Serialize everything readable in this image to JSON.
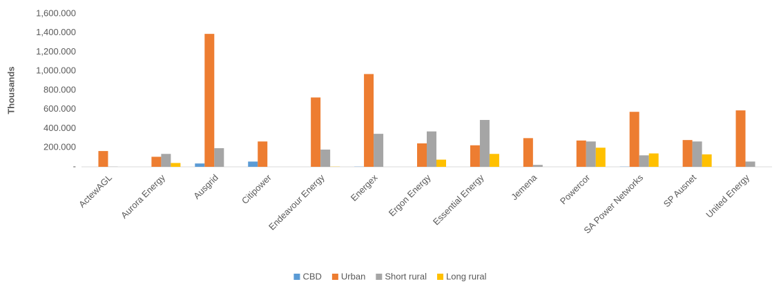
{
  "chart_data": {
    "type": "bar",
    "y_axis_label": "Thousands",
    "categories": [
      "ActewAGL",
      "Aurora Energy",
      "Ausgrid",
      "Citipower",
      "Endeavour Energy",
      "Energex",
      "Ergon Energy",
      "Essential Energy",
      "Jemena",
      "Powercor",
      "SA Power Networks",
      "SP Ausnet",
      "United Energy"
    ],
    "series": [
      {
        "name": "CBD",
        "color": "#5b9bd5",
        "values": [
          0,
          0,
          35,
          55,
          0,
          2,
          0,
          0,
          0,
          0,
          2,
          0,
          0
        ]
      },
      {
        "name": "Urban",
        "color": "#ed7d31",
        "values": [
          165,
          105,
          1390,
          265,
          725,
          970,
          245,
          225,
          300,
          275,
          575,
          280,
          590
        ]
      },
      {
        "name": "Short rural",
        "color": "#a5a5a5",
        "values": [
          2,
          135,
          195,
          0,
          180,
          345,
          370,
          490,
          20,
          265,
          120,
          265,
          55
        ]
      },
      {
        "name": "Long rural",
        "color": "#ffc000",
        "values": [
          0,
          40,
          0,
          0,
          2,
          0,
          75,
          135,
          0,
          200,
          140,
          130,
          0
        ]
      }
    ],
    "ylim": [
      0,
      1600
    ],
    "yticks": [
      {
        "value": 0,
        "label": "-"
      },
      {
        "value": 200,
        "label": "200.000"
      },
      {
        "value": 400,
        "label": "400.000"
      },
      {
        "value": 600,
        "label": "600.000"
      },
      {
        "value": 800,
        "label": "800.000"
      },
      {
        "value": 1000,
        "label": "1,000.000"
      },
      {
        "value": 1200,
        "label": "1,200.000"
      },
      {
        "value": 1400,
        "label": "1,400.000"
      },
      {
        "value": 1600,
        "label": "1,600.000"
      }
    ],
    "grid": false,
    "legend": "bottom"
  }
}
